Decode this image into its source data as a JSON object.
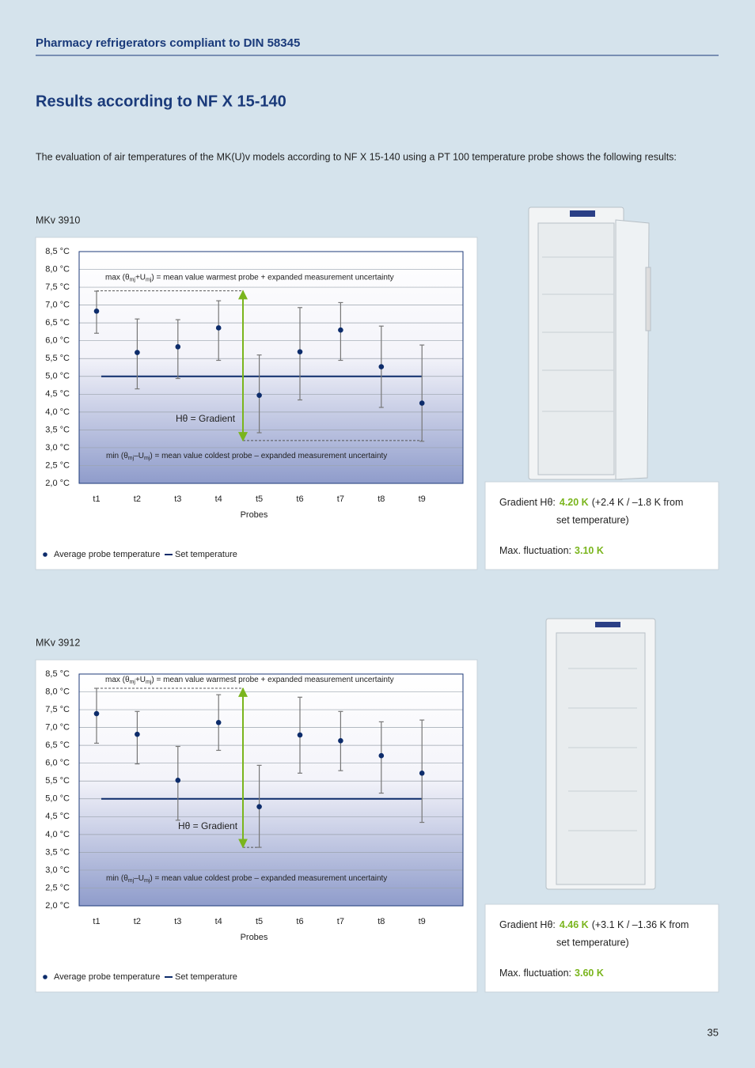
{
  "header": {
    "title": "Pharmacy refrigerators compliant to DIN 58345"
  },
  "heading": "Results according to NF X 15-140",
  "intro": "The evaluation of air temperatures of the MK(U)v models according to NF X 15-140 using a PT 100 temperature probe shows the following results:",
  "chart_data": [
    {
      "type": "errorbar",
      "title": "MKv 3910",
      "x_label": "Probes",
      "categories": [
        "t1",
        "t2",
        "t3",
        "t4",
        "t5",
        "t6",
        "t7",
        "t8",
        "t9"
      ],
      "series": [
        {
          "name": "Average probe temperature",
          "color": "#0d2c6b",
          "values": [
            6.83,
            5.67,
            5.83,
            6.36,
            4.47,
            5.69,
            6.3,
            5.27,
            4.25
          ],
          "low": [
            6.21,
            4.65,
            4.94,
            5.45,
            3.42,
            4.34,
            5.45,
            4.13,
            3.18
          ],
          "high": [
            7.39,
            6.61,
            6.59,
            7.12,
            5.6,
            6.93,
            7.07,
            6.41,
            5.88
          ]
        }
      ],
      "reference_line": {
        "name": "Set temperature",
        "color": "#0d2c6b",
        "value": 5
      },
      "max_line": 7.4,
      "min_line": 3.2,
      "gradient_color": "#7ab51d",
      "max_label": [
        "max (θ",
        "mj",
        "+U",
        "mj",
        ") = mean value warmest probe + expanded measurement uncertainty"
      ],
      "min_label": [
        "min (θ",
        "mj",
        "–U",
        "mj",
        ") = mean value coldest probe – expanded measurement uncertainty"
      ],
      "gradient_label": "Hθ = Gradient",
      "ylim": [
        2,
        8.5
      ],
      "yticks": [
        {
          "value": 2,
          "label": "2,0 °C"
        },
        {
          "value": 2.5,
          "label": "2,5 °C"
        },
        {
          "value": 3,
          "label": "3,0 °C"
        },
        {
          "value": 3.5,
          "label": "3,5 °C"
        },
        {
          "value": 4,
          "label": "4,0 °C"
        },
        {
          "value": 4.5,
          "label": "4,5 °C"
        },
        {
          "value": 5,
          "label": "5,0 °C"
        },
        {
          "value": 5.5,
          "label": "5,5 °C"
        },
        {
          "value": 6,
          "label": "6,0 °C"
        },
        {
          "value": 6.5,
          "label": "6,5 °C"
        },
        {
          "value": 7,
          "label": "7,0 °C"
        },
        {
          "value": 7.5,
          "label": "7,5 °C"
        },
        {
          "value": 8,
          "label": "8,0 °C"
        },
        {
          "value": 8.5,
          "label": "8,5 °C"
        }
      ],
      "grid": true
    },
    {
      "type": "errorbar",
      "title": "MKv 3912",
      "x_label": "Probes",
      "categories": [
        "t1",
        "t2",
        "t3",
        "t4",
        "t5",
        "t6",
        "t7",
        "t8",
        "t9"
      ],
      "series": [
        {
          "name": "Average probe temperature",
          "color": "#0d2c6b",
          "values": [
            7.39,
            6.81,
            5.52,
            7.14,
            4.78,
            6.79,
            6.63,
            6.21,
            5.72
          ],
          "low": [
            6.56,
            5.98,
            4.4,
            6.36,
            3.64,
            5.72,
            5.79,
            5.16,
            4.34
          ],
          "high": [
            8.1,
            7.45,
            6.47,
            7.92,
            5.94,
            7.85,
            7.45,
            7.16,
            7.21
          ]
        }
      ],
      "reference_line": {
        "name": "Set temperature",
        "color": "#0d2c6b",
        "value": 5
      },
      "max_line": 8.1,
      "min_line": 3.64,
      "gradient_color": "#7ab51d",
      "max_label": [
        "max (θ",
        "mj",
        "+U",
        "mj",
        ") = mean value warmest probe + expanded measurement uncertainty"
      ],
      "min_label": [
        "min (θ",
        "mj",
        "–U",
        "mj",
        ") = mean value coldest probe – expanded measurement uncertainty"
      ],
      "gradient_label": "Hθ = Gradient",
      "ylim": [
        2,
        8.5
      ],
      "yticks": [
        {
          "value": 2,
          "label": "2,0 °C"
        },
        {
          "value": 2.5,
          "label": "2,5 °C"
        },
        {
          "value": 3,
          "label": "3,0 °C"
        },
        {
          "value": 3.5,
          "label": "3,5 °C"
        },
        {
          "value": 4,
          "label": "4,0 °C"
        },
        {
          "value": 4.5,
          "label": "4,5 °C"
        },
        {
          "value": 5,
          "label": "5,0 °C"
        },
        {
          "value": 5.5,
          "label": "5,5 °C"
        },
        {
          "value": 6,
          "label": "6,0 °C"
        },
        {
          "value": 6.5,
          "label": "6,5 °C"
        },
        {
          "value": 7,
          "label": "7,0 °C"
        },
        {
          "value": 7.5,
          "label": "7,5 °C"
        },
        {
          "value": 8,
          "label": "8,0 °C"
        },
        {
          "value": 8.5,
          "label": "8,5 °C"
        }
      ],
      "grid": true
    }
  ],
  "panels": [
    {
      "gradient_label": "Gradient Hθ:",
      "gradient": "4.20 K",
      "gradient_note": [
        "(+2.4 K / –1.8 K from",
        "set temperature)"
      ],
      "fluctuation_label": "Max. fluctuation:",
      "fluctuation": "3.10 K"
    },
    {
      "gradient_label": "Gradient Hθ:",
      "gradient": "4.46 K",
      "gradient_note": [
        "(+3.1 K / –1.36 K from",
        "set temperature)"
      ],
      "fluctuation_label": "Max. fluctuation:",
      "fluctuation": "3.60 K"
    }
  ],
  "page_number": "35"
}
